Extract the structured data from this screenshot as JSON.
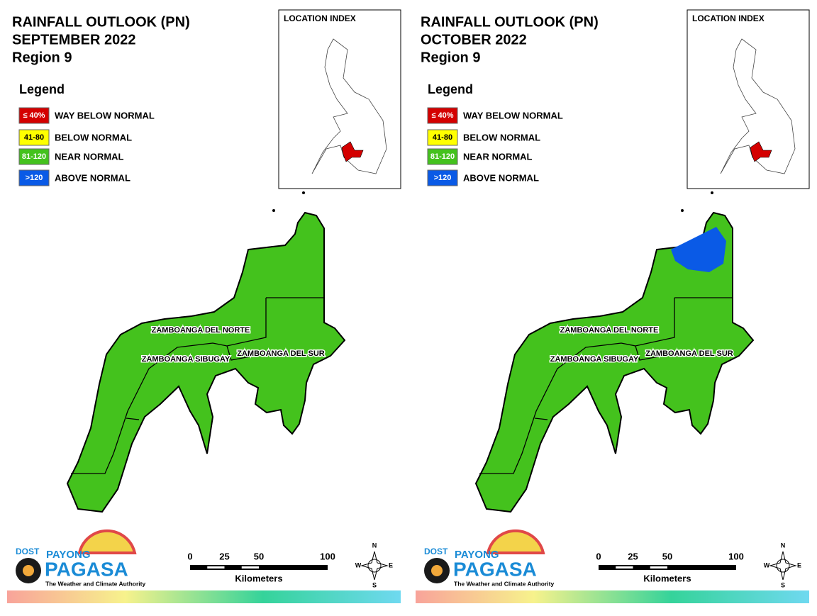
{
  "panels": [
    {
      "title": [
        "RAINFALL OUTLOOK (PN)",
        "SEPTEMBER 2022",
        "Region 9"
      ]
    },
    {
      "title": [
        "RAINFALL OUTLOOK (PN)",
        "OCTOBER 2022",
        "Region 9"
      ]
    }
  ],
  "location_index": "LOCATION INDEX",
  "legend": {
    "title": "Legend",
    "items": [
      {
        "swatch": "≤ 40%",
        "label": "WAY BELOW NORMAL",
        "color": "#d40000"
      },
      {
        "swatch": "41-80",
        "label": "BELOW NORMAL",
        "color": "#ffff00"
      },
      {
        "swatch": "81-120",
        "label": "NEAR NORMAL",
        "color": "#44c21d"
      },
      {
        "swatch": ">120",
        "label": "ABOVE NORMAL",
        "color": "#0a5ae6"
      }
    ]
  },
  "provinces": [
    "ZAMBOANGA DEL NORTE",
    "ZAMBOANGA SIBUGAY",
    "ZAMBOANGA DEL SUR"
  ],
  "scale": {
    "ticks": [
      0,
      25,
      50,
      100
    ],
    "unit": "Kilometers"
  },
  "compass": [
    "N",
    "E",
    "S",
    "W"
  ],
  "logo": {
    "agency": "DOST",
    "line1": "PAYONG",
    "line2": "PAGASA",
    "tagline": "The Weather and Climate Authority"
  }
}
